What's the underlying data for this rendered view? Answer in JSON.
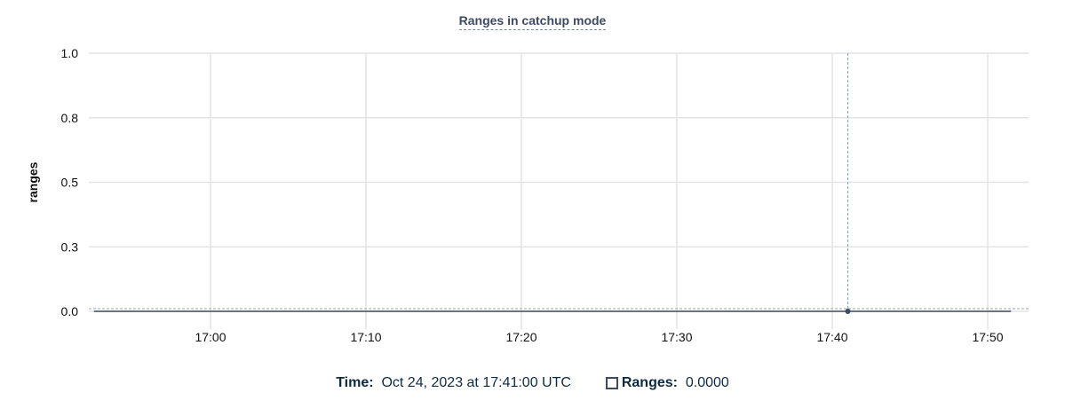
{
  "chart_data": {
    "type": "line",
    "title": "Ranges in catchup mode",
    "xlabel": "",
    "ylabel": "ranges",
    "x_ticks": [
      "17:00",
      "17:10",
      "17:20",
      "17:30",
      "17:40",
      "17:50"
    ],
    "y_ticks": [
      "0.0",
      "0.3",
      "0.5",
      "0.8",
      "1.0"
    ],
    "ylim": [
      0,
      1
    ],
    "xlim": [
      "16:52",
      "17:53"
    ],
    "grid": true,
    "series": [
      {
        "name": "Ranges",
        "color": "#3c4a63",
        "x_start": "16:53",
        "x_end": "17:52",
        "interval_minutes": 1,
        "value": 0
      }
    ],
    "hover": {
      "x": "17:41",
      "y": 0
    }
  },
  "legend": {
    "time_label": "Time:",
    "time_value": "Oct 24, 2023 at 17:41:00 UTC",
    "series_label": "Ranges:",
    "series_value": "0.0000"
  }
}
